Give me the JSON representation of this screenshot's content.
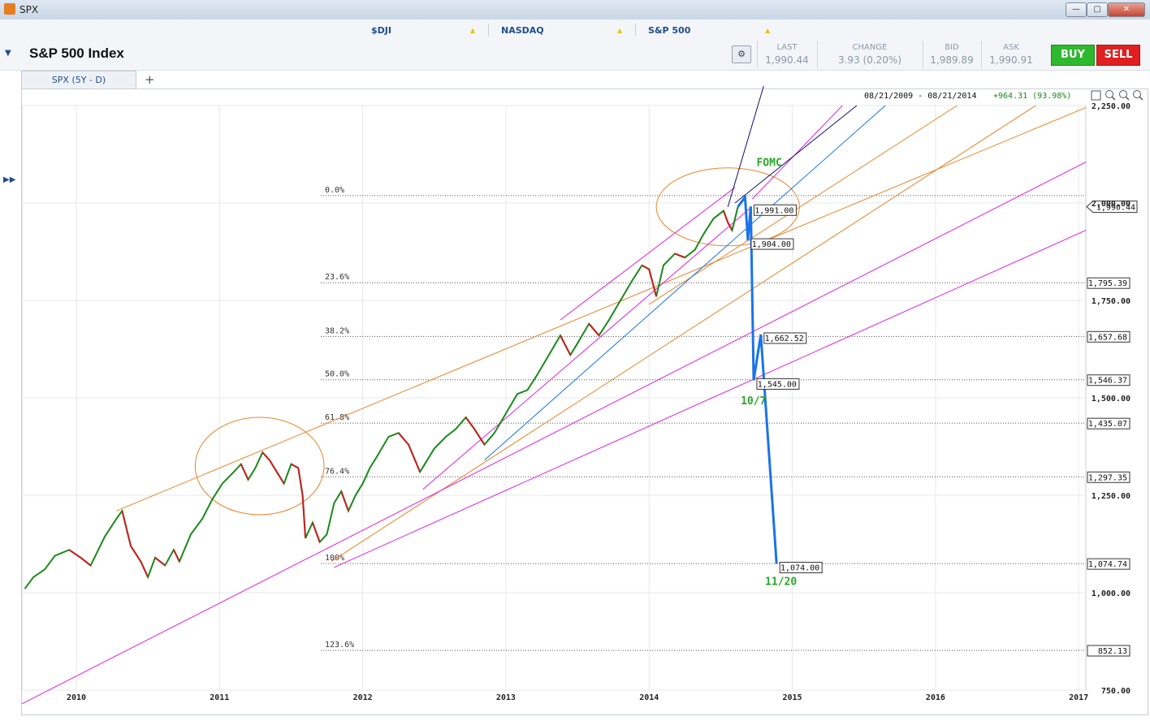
{
  "window": {
    "title": "SPX",
    "min_label": "—",
    "max_label": "▢",
    "close_label": "✕"
  },
  "tickers": [
    {
      "label": "$DJI",
      "arrow": "▲"
    },
    {
      "label": "NASDAQ",
      "arrow": "▲"
    },
    {
      "label": "S&P 500",
      "arrow": "▲"
    }
  ],
  "header": {
    "title": "S&P 500 Index",
    "collapse_icon": "▼"
  },
  "quote": {
    "last_label": "LAST",
    "last": "1,990.44",
    "change_label": "CHANGE",
    "change": "3.93 (0.20%)",
    "bid_label": "BID",
    "bid": "1,989.89",
    "ask_label": "ASK",
    "ask": "1,990.91"
  },
  "actions": {
    "buy": "BUY",
    "sell": "SELL"
  },
  "tabs": [
    {
      "label": "SPX (5Y - D)"
    }
  ],
  "add_tab_label": "+",
  "colors": {
    "accent": "#1f4e8c",
    "buy": "#2eb82e",
    "sell": "#e02020",
    "projection": "#1a73e8",
    "fib": "#555555",
    "channel_orange": "#e8842a",
    "channel_magenta": "#e020e0",
    "annotation_green": "#2aa52a"
  },
  "chart_data": {
    "type": "line",
    "title": "",
    "range_label": "08/21/2009 - 08/21/2014",
    "range_change": "+964.31 (93.98%)",
    "xlabel": "",
    "ylabel": "",
    "ylim": [
      750,
      2250
    ],
    "y_ticks": [
      750,
      1000,
      1250,
      1500,
      1750,
      2000,
      2250
    ],
    "y_tick_labels": [
      "750.00",
      "1,000.00",
      "1,250.00",
      "1,500.00",
      "1,750.00",
      "2,000.00",
      "2,250.00"
    ],
    "x_ticks": [
      {
        "label": "2010",
        "t": 2010.0
      },
      {
        "label": "2011",
        "t": 2011.0
      },
      {
        "label": "2012",
        "t": 2012.0
      },
      {
        "label": "2013",
        "t": 2013.0
      },
      {
        "label": "2014",
        "t": 2014.0
      },
      {
        "label": "2015",
        "t": 2015.0
      },
      {
        "label": "2016",
        "t": 2016.0
      },
      {
        "label": "2017",
        "t": 2017.0
      }
    ],
    "xlim": [
      2009.62,
      2017.05
    ],
    "current_price": {
      "value": 1990.44,
      "label": "1,990.44"
    },
    "fib_levels": [
      {
        "label": "0.0%",
        "value": 2019,
        "price_label": ""
      },
      {
        "label": "23.6%",
        "value": 1795.39,
        "price_label": "1,795.39"
      },
      {
        "label": "38.2%",
        "value": 1657.68,
        "price_label": "1,657.68"
      },
      {
        "label": "50.0%",
        "value": 1546.37,
        "price_label": "1,546.37"
      },
      {
        "label": "61.8%",
        "value": 1435.07,
        "price_label": "1,435.07"
      },
      {
        "label": "76.4%",
        "value": 1297.35,
        "price_label": "1,297.35"
      },
      {
        "label": "100%",
        "value": 1074.74,
        "price_label": "1,074.74"
      },
      {
        "label": "123.6%",
        "value": 852.13,
        "price_label": "852.13"
      }
    ],
    "price_series": [
      [
        2009.64,
        1010
      ],
      [
        2009.7,
        1040
      ],
      [
        2009.78,
        1060
      ],
      [
        2009.85,
        1095
      ],
      [
        2009.95,
        1110
      ],
      [
        2010.03,
        1090
      ],
      [
        2010.1,
        1070
      ],
      [
        2010.2,
        1145
      ],
      [
        2010.28,
        1190
      ],
      [
        2010.32,
        1210
      ],
      [
        2010.38,
        1120
      ],
      [
        2010.45,
        1080
      ],
      [
        2010.5,
        1040
      ],
      [
        2010.55,
        1090
      ],
      [
        2010.62,
        1070
      ],
      [
        2010.68,
        1110
      ],
      [
        2010.72,
        1080
      ],
      [
        2010.8,
        1150
      ],
      [
        2010.88,
        1190
      ],
      [
        2010.95,
        1240
      ],
      [
        2011.02,
        1280
      ],
      [
        2011.1,
        1310
      ],
      [
        2011.15,
        1330
      ],
      [
        2011.2,
        1290
      ],
      [
        2011.25,
        1320
      ],
      [
        2011.3,
        1360
      ],
      [
        2011.35,
        1340
      ],
      [
        2011.4,
        1310
      ],
      [
        2011.45,
        1280
      ],
      [
        2011.5,
        1330
      ],
      [
        2011.55,
        1320
      ],
      [
        2011.58,
        1250
      ],
      [
        2011.6,
        1140
      ],
      [
        2011.65,
        1180
      ],
      [
        2011.7,
        1130
      ],
      [
        2011.75,
        1150
      ],
      [
        2011.8,
        1230
      ],
      [
        2011.85,
        1260
      ],
      [
        2011.9,
        1210
      ],
      [
        2011.95,
        1250
      ],
      [
        2012.0,
        1280
      ],
      [
        2012.05,
        1320
      ],
      [
        2012.1,
        1350
      ],
      [
        2012.18,
        1400
      ],
      [
        2012.25,
        1410
      ],
      [
        2012.32,
        1380
      ],
      [
        2012.4,
        1310
      ],
      [
        2012.45,
        1340
      ],
      [
        2012.5,
        1370
      ],
      [
        2012.58,
        1400
      ],
      [
        2012.65,
        1420
      ],
      [
        2012.72,
        1450
      ],
      [
        2012.78,
        1420
      ],
      [
        2012.85,
        1380
      ],
      [
        2012.92,
        1410
      ],
      [
        2013.0,
        1460
      ],
      [
        2013.08,
        1510
      ],
      [
        2013.15,
        1520
      ],
      [
        2013.22,
        1560
      ],
      [
        2013.3,
        1610
      ],
      [
        2013.38,
        1660
      ],
      [
        2013.45,
        1610
      ],
      [
        2013.5,
        1640
      ],
      [
        2013.58,
        1690
      ],
      [
        2013.65,
        1660
      ],
      [
        2013.72,
        1700
      ],
      [
        2013.8,
        1750
      ],
      [
        2013.88,
        1800
      ],
      [
        2013.95,
        1840
      ],
      [
        2014.0,
        1830
      ],
      [
        2014.05,
        1760
      ],
      [
        2014.1,
        1840
      ],
      [
        2014.18,
        1870
      ],
      [
        2014.25,
        1860
      ],
      [
        2014.32,
        1880
      ],
      [
        2014.38,
        1920
      ],
      [
        2014.45,
        1960
      ],
      [
        2014.52,
        1980
      ],
      [
        2014.55,
        1950
      ],
      [
        2014.58,
        1930
      ],
      [
        2014.62,
        1990.44
      ]
    ],
    "projection": {
      "series": [
        [
          2014.62,
          1990.44
        ],
        [
          2014.67,
          2015
        ],
        [
          2014.69,
          1904
        ],
        [
          2014.71,
          1991
        ],
        [
          2014.73,
          1545
        ],
        [
          2014.78,
          1662.52
        ],
        [
          2014.89,
          1074
        ]
      ],
      "labels": [
        {
          "label": "1,991.00",
          "t": 2014.71,
          "value": 1991
        },
        {
          "label": "1,904.00",
          "t": 2014.69,
          "value": 1904
        },
        {
          "label": "1,662.52",
          "t": 2014.78,
          "value": 1662.52
        },
        {
          "label": "1,545.00",
          "t": 2014.73,
          "value": 1545
        },
        {
          "label": "1,074.00",
          "t": 2014.89,
          "value": 1074
        }
      ]
    },
    "annotations": [
      {
        "text": "FOMC",
        "t": 2014.75,
        "value": 2095
      },
      {
        "text": "10/7",
        "t": 2014.64,
        "value": 1483
      },
      {
        "text": "11/20",
        "t": 2014.81,
        "value": 1020
      }
    ],
    "trendlines": [
      {
        "color": "#e8842a",
        "from": [
          2010.28,
          1210
        ],
        "to": [
          2017.05,
          2245
        ]
      },
      {
        "color": "#e8842a",
        "from": [
          2011.78,
          1080
        ],
        "to": [
          2016.7,
          2250
        ]
      },
      {
        "color": "#e8842a",
        "from": [
          2014.0,
          1740
        ],
        "to": [
          2016.15,
          2250
        ]
      },
      {
        "color": "#e020e0",
        "from": [
          2009.62,
          715
        ],
        "to": [
          2017.05,
          2105
        ]
      },
      {
        "color": "#e020e0",
        "from": [
          2011.8,
          1065
        ],
        "to": [
          2017.05,
          1930
        ]
      },
      {
        "color": "#e020e0",
        "from": [
          2012.42,
          1265
        ],
        "to": [
          2014.7,
          1985
        ]
      },
      {
        "color": "#e020e0",
        "from": [
          2013.38,
          1700
        ],
        "to": [
          2014.6,
          2040
        ]
      },
      {
        "color": "#e020e0",
        "from": [
          2014.72,
          2010
        ],
        "to": [
          2015.35,
          2250
        ]
      },
      {
        "color": "#1a73e8",
        "from": [
          2012.85,
          1340
        ],
        "to": [
          2015.65,
          2250
        ]
      },
      {
        "color": "#101070",
        "from": [
          2014.55,
          1990
        ],
        "to": [
          2014.8,
          2300
        ]
      },
      {
        "color": "#101070",
        "from": [
          2014.6,
          2000
        ],
        "to": [
          2015.45,
          2250
        ]
      }
    ],
    "circles": [
      {
        "color": "#e8842a",
        "t": 2011.28,
        "value": 1325,
        "rt": 0.45,
        "rv": 125
      },
      {
        "color": "#e8842a",
        "t": 2014.55,
        "value": 1990,
        "rt": 0.5,
        "rv": 100
      }
    ],
    "grid": true,
    "legend": "none"
  }
}
